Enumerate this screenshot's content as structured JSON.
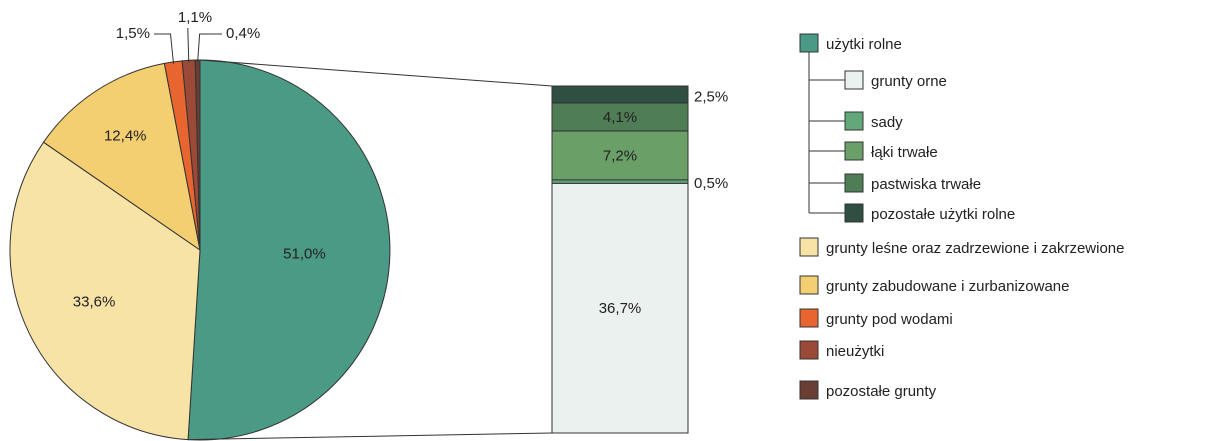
{
  "chart_data": {
    "type": "pie",
    "decimal_separator": ",",
    "unit": "%",
    "pie_slices": [
      {
        "key": "uzytki",
        "label": "użytki rolne",
        "value": 51.0,
        "display": "51,0%",
        "color": "#4a9a85"
      },
      {
        "key": "lesne",
        "label": "grunty leśne oraz zadrzewione i zakrzewione",
        "value": 33.6,
        "display": "33,6%",
        "color": "#f7e3a6"
      },
      {
        "key": "zabud",
        "label": "grunty zabudowane i zurbanizowane",
        "value": 12.4,
        "display": "12,4%",
        "color": "#f3cf71"
      },
      {
        "key": "wody",
        "label": "grunty pod wodami",
        "value": 1.5,
        "display": "1,5%",
        "color": "#e8652f"
      },
      {
        "key": "nieuz",
        "label": "nieużytki",
        "value": 1.1,
        "display": "1,1%",
        "color": "#9a4a37"
      },
      {
        "key": "pozost",
        "label": "pozostałe grunty",
        "value": 0.4,
        "display": "0,4%",
        "color": "#6b3e33"
      }
    ],
    "breakdown_of": "użytki rolne",
    "breakdown": [
      {
        "key": "orne",
        "label": "grunty orne",
        "value": 36.7,
        "display": "36,7%",
        "color": "#eaf1ee"
      },
      {
        "key": "sady",
        "label": "sady",
        "value": 0.5,
        "display": "0,5%",
        "color": "#62a87a"
      },
      {
        "key": "laki",
        "label": "łąki trwałe",
        "value": 7.2,
        "display": "7,2%",
        "color": "#6a9f68"
      },
      {
        "key": "pastw",
        "label": "pastwiska trwałe",
        "value": 4.1,
        "display": "4,1%",
        "color": "#4f7d55"
      },
      {
        "key": "pozur",
        "label": "pozostałe użytki rolne",
        "value": 2.5,
        "display": "2,5%",
        "color": "#2f4f42"
      }
    ]
  },
  "legend": {
    "parent": {
      "label": "użytki rolne",
      "color": "#4a9a85"
    },
    "children": [
      {
        "label": "grunty orne",
        "color": "#eaf1ee"
      },
      {
        "label": "sady",
        "color": "#62a87a"
      },
      {
        "label": "łąki trwałe",
        "color": "#6a9f68"
      },
      {
        "label": "pastwiska trwałe",
        "color": "#4f7d55"
      },
      {
        "label": "pozostałe użytki rolne",
        "color": "#2f4f42"
      }
    ],
    "others": [
      {
        "label": "grunty leśne oraz zadrzewione i zakrzewione",
        "color": "#f7e3a6"
      },
      {
        "label": "grunty zabudowane i zurbanizowane",
        "color": "#f3cf71"
      },
      {
        "label": "grunty pod wodami",
        "color": "#e8652f"
      },
      {
        "label": "nieużytki",
        "color": "#9a4a37"
      },
      {
        "label": "pozostałe grunty",
        "color": "#6b3e33"
      }
    ]
  }
}
